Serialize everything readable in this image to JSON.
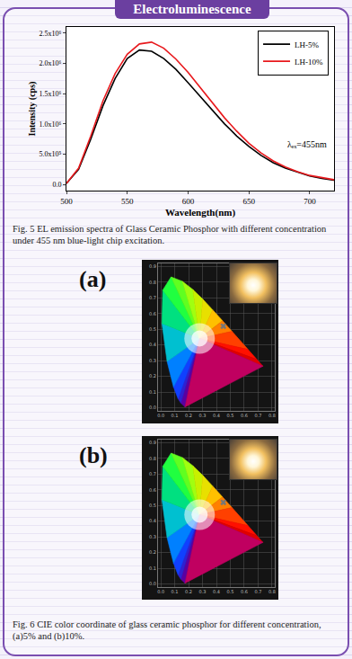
{
  "header": "Electroluminescence",
  "chart_data": [
    {
      "type": "line",
      "x": [
        500,
        510,
        520,
        530,
        540,
        550,
        560,
        570,
        580,
        590,
        600,
        610,
        620,
        630,
        640,
        650,
        660,
        670,
        680,
        690,
        700,
        710,
        720
      ],
      "series": [
        {
          "name": "LH-5%",
          "color": "#000000",
          "values": [
            20000,
            250000,
            750000,
            1300000,
            1750000,
            2080000,
            2220000,
            2200000,
            2080000,
            1900000,
            1680000,
            1450000,
            1220000,
            1000000,
            800000,
            630000,
            480000,
            360000,
            270000,
            200000,
            140000,
            100000,
            70000
          ]
        },
        {
          "name": "LH-10%",
          "color": "#e8191d",
          "values": [
            20000,
            270000,
            800000,
            1380000,
            1830000,
            2150000,
            2320000,
            2350000,
            2250000,
            2070000,
            1850000,
            1600000,
            1350000,
            1100000,
            880000,
            680000,
            520000,
            390000,
            290000,
            210000,
            150000,
            110000,
            80000
          ]
        }
      ],
      "xlim": [
        500,
        720
      ],
      "xticks": [
        500,
        550,
        600,
        650,
        700
      ],
      "ylim": [
        -100000,
        2600000
      ],
      "yticks": [
        {
          "value": 0,
          "label": "0.0"
        },
        {
          "value": 500000,
          "label": "5.0x10⁵"
        },
        {
          "value": 1000000,
          "label": "1.0x10⁶"
        },
        {
          "value": 1500000,
          "label": "1.5x10⁶"
        },
        {
          "value": 2000000,
          "label": "2.0x10⁶"
        },
        {
          "value": 2500000,
          "label": "2.5x10⁶"
        }
      ],
      "x_label": "Wavelength(nm)",
      "y_label": "Intensity (cps)",
      "legend": "upper right",
      "annotations": [
        "λₑₓ=455nm"
      ]
    },
    {
      "type": "cie",
      "title": "(a)",
      "locus": {
        "x": [
          0.174,
          0.144,
          0.124,
          0.091,
          0.045,
          0.008,
          0.014,
          0.074,
          0.155,
          0.23,
          0.302,
          0.373,
          0.444,
          0.512,
          0.627,
          0.691,
          0.735
        ],
        "y": [
          0.005,
          0.03,
          0.058,
          0.133,
          0.295,
          0.538,
          0.75,
          0.834,
          0.806,
          0.754,
          0.692,
          0.624,
          0.555,
          0.487,
          0.372,
          0.308,
          0.265
        ]
      },
      "point": {
        "x": 0.45,
        "y": 0.52
      },
      "marker": "x",
      "xlim": [
        -0.02,
        0.82
      ],
      "ylim": [
        -0.02,
        0.92
      ],
      "xticks": [
        {
          "value": 0,
          "label": "0.0"
        },
        {
          "value": 0.1,
          "label": "0.1"
        },
        {
          "value": 0.2,
          "label": "0.2"
        },
        {
          "value": 0.3,
          "label": "0.3"
        },
        {
          "value": 0.4,
          "label": "0.4"
        },
        {
          "value": 0.5,
          "label": "0.5"
        },
        {
          "value": 0.6,
          "label": "0.6"
        },
        {
          "value": 0.7,
          "label": "0.7"
        },
        {
          "value": 0.8,
          "label": "0.8"
        }
      ],
      "yticks": [
        {
          "value": 0,
          "label": "0.0"
        },
        {
          "value": 0.1,
          "label": "0.1"
        },
        {
          "value": 0.2,
          "label": "0.2"
        },
        {
          "value": 0.3,
          "label": "0.3"
        },
        {
          "value": 0.4,
          "label": "0.4"
        },
        {
          "value": 0.5,
          "label": "0.5"
        },
        {
          "value": 0.6,
          "label": "0.6"
        },
        {
          "value": 0.7,
          "label": "0.7"
        },
        {
          "value": 0.8,
          "label": "0.8"
        },
        {
          "value": 0.9,
          "label": "0.9"
        }
      ],
      "grid": true
    },
    {
      "type": "cie",
      "title": "(b)",
      "locus": {
        "x": [
          0.174,
          0.144,
          0.124,
          0.091,
          0.045,
          0.008,
          0.014,
          0.074,
          0.155,
          0.23,
          0.302,
          0.373,
          0.444,
          0.512,
          0.627,
          0.691,
          0.735
        ],
        "y": [
          0.005,
          0.03,
          0.058,
          0.133,
          0.295,
          0.538,
          0.75,
          0.834,
          0.806,
          0.754,
          0.692,
          0.624,
          0.555,
          0.487,
          0.372,
          0.308,
          0.265
        ]
      },
      "point": {
        "x": 0.45,
        "y": 0.52
      },
      "marker": "x",
      "xlim": [
        -0.02,
        0.82
      ],
      "ylim": [
        -0.02,
        0.92
      ],
      "xticks": [
        {
          "value": 0,
          "label": "0.0"
        },
        {
          "value": 0.1,
          "label": "0.1"
        },
        {
          "value": 0.2,
          "label": "0.2"
        },
        {
          "value": 0.3,
          "label": "0.3"
        },
        {
          "value": 0.4,
          "label": "0.4"
        },
        {
          "value": 0.5,
          "label": "0.5"
        },
        {
          "value": 0.6,
          "label": "0.6"
        },
        {
          "value": 0.7,
          "label": "0.7"
        },
        {
          "value": 0.8,
          "label": "0.8"
        }
      ],
      "yticks": [
        {
          "value": 0,
          "label": "0.0"
        },
        {
          "value": 0.1,
          "label": "0.1"
        },
        {
          "value": 0.2,
          "label": "0.2"
        },
        {
          "value": 0.3,
          "label": "0.3"
        },
        {
          "value": 0.4,
          "label": "0.4"
        },
        {
          "value": 0.5,
          "label": "0.5"
        },
        {
          "value": 0.6,
          "label": "0.6"
        },
        {
          "value": 0.7,
          "label": "0.7"
        },
        {
          "value": 0.8,
          "label": "0.8"
        },
        {
          "value": 0.9,
          "label": "0.9"
        }
      ],
      "grid": true
    }
  ],
  "captions": [
    "Fig. 5 EL emission spectra of Glass Ceramic Phosphor with different concentration under 455 nm blue-light chip excitation.",
    "Fig. 6 CIE color coordinate of glass ceramic phosphor for different concentration, (a)5% and (b)10%."
  ]
}
